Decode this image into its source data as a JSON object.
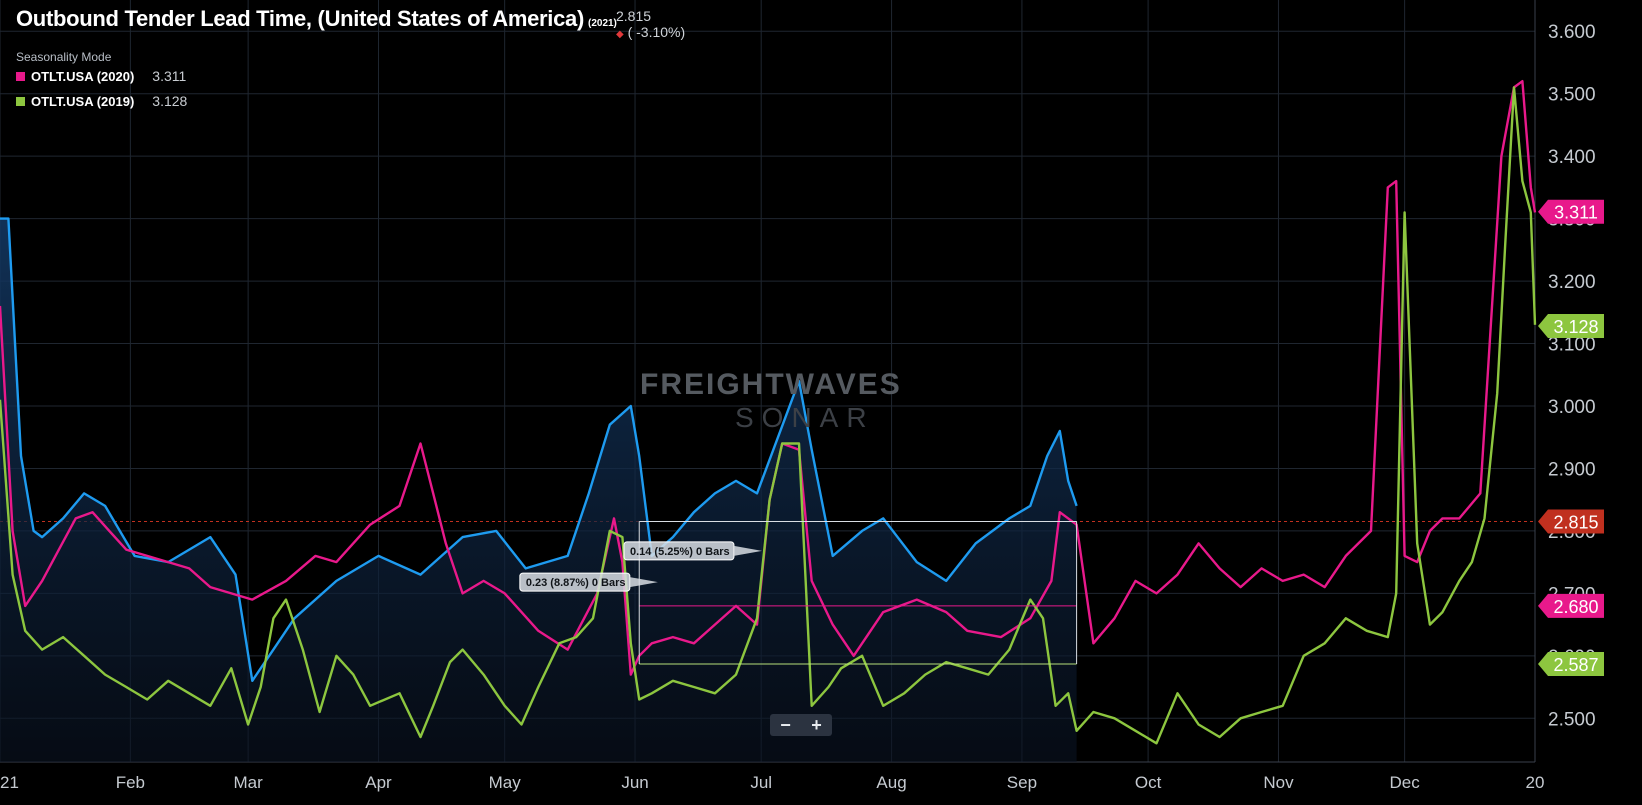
{
  "header": {
    "title": "Outbound Tender Lead Time, (United States of America)",
    "title_year": "(2021)",
    "current_value": "2.815",
    "change": "( -3.10%)",
    "mode": "Seasonality Mode"
  },
  "legend": [
    {
      "name": "OTLT.USA (2020)",
      "value": "3.311",
      "color": "#e8198b"
    },
    {
      "name": "OTLT.USA (2019)",
      "value": "3.128",
      "color": "#8dc63f"
    }
  ],
  "watermark": {
    "line1": "FREIGHTWAVES",
    "line2": "SONAR"
  },
  "zoom": {
    "minus": "−",
    "plus": "+"
  },
  "colors": {
    "series_2021": "#1e9bf0",
    "series_2020": "#e8198b",
    "series_2019": "#8dc63f",
    "current": "#c0301f",
    "grid": "#1f2630",
    "axis_text": "#c5cad0"
  },
  "chart_data": {
    "type": "line",
    "x_labels": [
      "21",
      "Feb",
      "Mar",
      "Apr",
      "May",
      "Jun",
      "Jul",
      "Aug",
      "Sep",
      "Oct",
      "Nov",
      "Dec",
      "20"
    ],
    "x_day_ticks": [
      0,
      31,
      59,
      90,
      120,
      151,
      181,
      212,
      243,
      273,
      304,
      334,
      365
    ],
    "y_ticks": [
      2.5,
      2.6,
      2.7,
      2.8,
      2.9,
      3.0,
      3.1,
      3.2,
      3.3,
      3.4,
      3.5,
      3.6
    ],
    "y_tick_labels": [
      "2.500",
      "2.600",
      "2.700",
      "2.800",
      "2.900",
      "3.000",
      "3.100",
      "3.200",
      "3.300",
      "3.400",
      "3.500",
      "3.600"
    ],
    "ylim": [
      2.43,
      3.65
    ],
    "xlim": [
      0,
      365
    ],
    "grid": true,
    "series": [
      {
        "name": "2021",
        "color": "#1e9bf0",
        "filled": true,
        "x": [
          0,
          2,
          5,
          8,
          10,
          15,
          20,
          25,
          32,
          40,
          50,
          56,
          60,
          65,
          70,
          80,
          90,
          100,
          110,
          118,
          125,
          135,
          140,
          145,
          150,
          152,
          155,
          160,
          165,
          170,
          175,
          180,
          185,
          190,
          193,
          198,
          205,
          210,
          218,
          225,
          232,
          240,
          245,
          249,
          252,
          254,
          256
        ],
        "y": [
          3.3,
          3.3,
          2.92,
          2.8,
          2.79,
          2.82,
          2.86,
          2.84,
          2.76,
          2.75,
          2.79,
          2.73,
          2.56,
          2.61,
          2.66,
          2.72,
          2.76,
          2.73,
          2.79,
          2.8,
          2.74,
          2.76,
          2.86,
          2.97,
          3.0,
          2.92,
          2.76,
          2.79,
          2.83,
          2.86,
          2.88,
          2.86,
          2.95,
          3.04,
          2.93,
          2.76,
          2.8,
          2.82,
          2.75,
          2.72,
          2.78,
          2.82,
          2.84,
          2.92,
          2.96,
          2.88,
          2.84
        ]
      },
      {
        "name": "OTLT.USA (2020)",
        "color": "#e8198b",
        "filled": false,
        "x": [
          0,
          3,
          6,
          10,
          14,
          18,
          22,
          26,
          30,
          35,
          40,
          45,
          50,
          55,
          60,
          68,
          75,
          80,
          88,
          95,
          100,
          103,
          106,
          110,
          115,
          120,
          128,
          135,
          142,
          146,
          148,
          150,
          152,
          155,
          160,
          165,
          170,
          175,
          180,
          183,
          186,
          190,
          193,
          198,
          203,
          210,
          218,
          225,
          230,
          238,
          245,
          250,
          252,
          256,
          260,
          265,
          270,
          275,
          280,
          285,
          290,
          295,
          300,
          305,
          310,
          315,
          320,
          326,
          330,
          332,
          334,
          337,
          340,
          343,
          347,
          352,
          357,
          360,
          362,
          364,
          365
        ],
        "y": [
          3.16,
          2.8,
          2.68,
          2.72,
          2.77,
          2.82,
          2.83,
          2.8,
          2.77,
          2.76,
          2.75,
          2.74,
          2.71,
          2.7,
          2.69,
          2.72,
          2.76,
          2.75,
          2.81,
          2.84,
          2.94,
          2.86,
          2.78,
          2.7,
          2.72,
          2.7,
          2.64,
          2.61,
          2.7,
          2.82,
          2.75,
          2.57,
          2.6,
          2.62,
          2.63,
          2.62,
          2.65,
          2.68,
          2.65,
          2.85,
          2.94,
          2.93,
          2.72,
          2.65,
          2.6,
          2.67,
          2.69,
          2.67,
          2.64,
          2.63,
          2.66,
          2.72,
          2.83,
          2.81,
          2.62,
          2.66,
          2.72,
          2.7,
          2.73,
          2.78,
          2.74,
          2.71,
          2.74,
          2.72,
          2.73,
          2.71,
          2.76,
          2.8,
          3.35,
          3.36,
          2.76,
          2.75,
          2.8,
          2.82,
          2.82,
          2.86,
          3.4,
          3.51,
          3.52,
          3.35,
          3.31
        ]
      },
      {
        "name": "OTLT.USA (2019)",
        "color": "#8dc63f",
        "filled": false,
        "x": [
          0,
          3,
          6,
          10,
          15,
          20,
          25,
          30,
          35,
          40,
          45,
          50,
          55,
          59,
          62,
          65,
          68,
          72,
          76,
          80,
          84,
          88,
          95,
          100,
          103,
          107,
          110,
          115,
          120,
          124,
          128,
          133,
          137,
          141,
          145,
          148,
          150,
          152,
          155,
          160,
          165,
          170,
          175,
          180,
          183,
          186,
          190,
          193,
          197,
          200,
          205,
          210,
          215,
          220,
          225,
          230,
          235,
          240,
          245,
          248,
          251,
          254,
          256,
          260,
          265,
          270,
          275,
          280,
          285,
          290,
          295,
          300,
          305,
          310,
          315,
          320,
          325,
          330,
          332,
          334,
          337,
          340,
          343,
          347,
          350,
          353,
          356,
          358,
          360,
          362,
          364,
          365
        ],
        "y": [
          3.01,
          2.73,
          2.64,
          2.61,
          2.63,
          2.6,
          2.57,
          2.55,
          2.53,
          2.56,
          2.54,
          2.52,
          2.58,
          2.49,
          2.55,
          2.66,
          2.69,
          2.61,
          2.51,
          2.6,
          2.57,
          2.52,
          2.54,
          2.47,
          2.52,
          2.59,
          2.61,
          2.57,
          2.52,
          2.49,
          2.55,
          2.62,
          2.63,
          2.66,
          2.8,
          2.79,
          2.62,
          2.53,
          2.54,
          2.56,
          2.55,
          2.54,
          2.57,
          2.66,
          2.85,
          2.94,
          2.94,
          2.52,
          2.55,
          2.58,
          2.6,
          2.52,
          2.54,
          2.57,
          2.59,
          2.58,
          2.57,
          2.61,
          2.69,
          2.66,
          2.52,
          2.54,
          2.48,
          2.51,
          2.5,
          2.48,
          2.46,
          2.54,
          2.49,
          2.47,
          2.5,
          2.51,
          2.52,
          2.6,
          2.62,
          2.66,
          2.64,
          2.63,
          2.7,
          3.31,
          2.78,
          2.65,
          2.67,
          2.72,
          2.75,
          2.82,
          3.02,
          3.27,
          3.51,
          3.36,
          3.31,
          3.13
        ]
      }
    ],
    "current_line": {
      "value": 2.815,
      "label": "2.815"
    },
    "price_tags": [
      {
        "label": "3.311",
        "value": 3.311,
        "color": "#e8198b"
      },
      {
        "label": "3.128",
        "value": 3.128,
        "color": "#8dc63f"
      },
      {
        "label": "2.815",
        "value": 2.815,
        "color": "#c0301f"
      },
      {
        "label": "2.680",
        "value": 2.68,
        "color": "#e8198b"
      },
      {
        "label": "2.587",
        "value": 2.587,
        "color": "#8dc63f"
      }
    ],
    "annotations": [
      {
        "label": "0.23 (8.87%) 0 Bars",
        "x": 155,
        "y": 2.71
      },
      {
        "label": "0.14 (5.25%) 0 Bars",
        "x": 175,
        "y": 2.76
      }
    ],
    "ranges": [
      {
        "x0": 152,
        "x1": 256,
        "top": 2.815,
        "bottom": 2.587,
        "mid": 2.68
      }
    ]
  }
}
